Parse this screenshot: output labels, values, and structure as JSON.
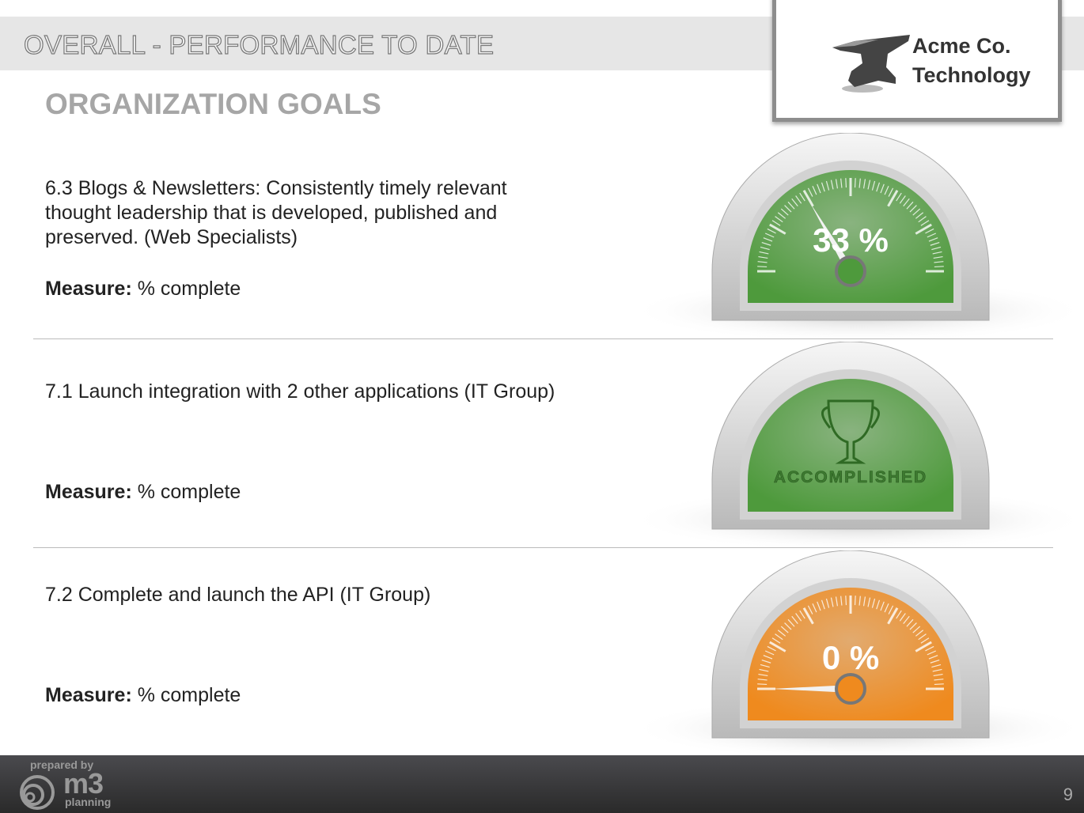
{
  "header": {
    "title": "OVERALL - PERFORMANCE TO DATE",
    "section": "ORGANIZATION GOALS"
  },
  "logo": {
    "line1": "Acme Co.",
    "line2": "Technology"
  },
  "goals": [
    {
      "text": "6.3 Blogs & Newsletters: Consistently timely relevant thought leadership that is developed, published and preserved. (Web Specialists)",
      "measure_label": "Measure:",
      "measure_value": " % complete",
      "gauge": {
        "label": "33 %",
        "value": 33,
        "state": "in-progress",
        "color": "#4e9a3c"
      }
    },
    {
      "text": "7.1 Launch integration with 2 other applications (IT Group)",
      "measure_label": "Measure:",
      "measure_value": " % complete",
      "gauge": {
        "label": "ACCOMPLISHED",
        "value": 100,
        "state": "accomplished",
        "icon": "trophy-icon",
        "color": "#4e9a3c"
      }
    },
    {
      "text": "7.2 Complete and launch the API (IT Group)",
      "measure_label": "Measure:",
      "measure_value": " % complete",
      "gauge": {
        "label": "0 %",
        "value": 0,
        "state": "in-progress",
        "color": "#ef8a1e"
      }
    }
  ],
  "footer": {
    "prepared_by": "prepared by",
    "brand": "m3",
    "brand_sub": "planning",
    "page_number": "9"
  }
}
